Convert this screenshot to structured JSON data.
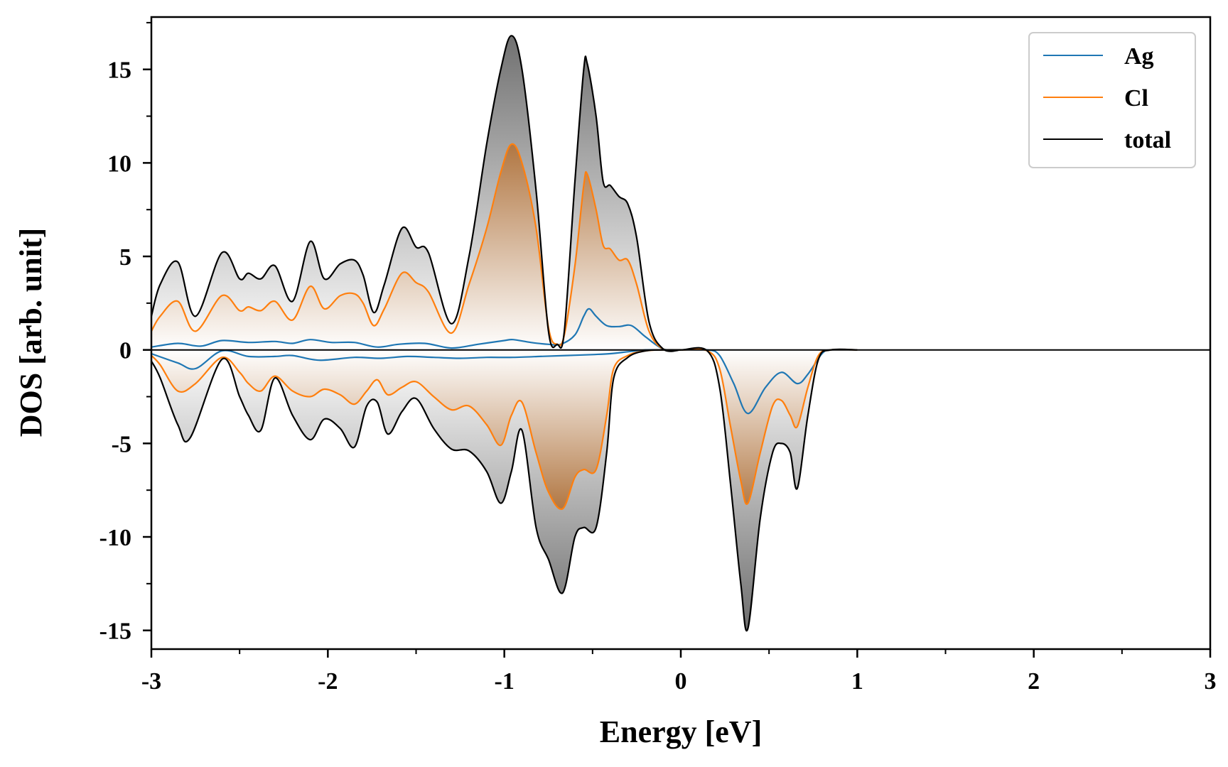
{
  "chart_data": {
    "type": "area",
    "xlabel": "Energy [eV]",
    "ylabel": "DOS [arb. unit]",
    "xlim": [
      -3,
      3
    ],
    "ylim": [
      -16,
      17.8
    ],
    "xticks": [
      -3,
      -2,
      -1,
      0,
      1,
      2,
      3
    ],
    "yticks": [
      -15,
      -10,
      -5,
      0,
      5,
      10,
      15
    ],
    "grid": false,
    "legend_position": "top-right",
    "colors": {
      "Ag": "#1f77b4",
      "Cl": "#ff7f0e",
      "total": "#000000"
    },
    "fills": {
      "total": "#808080",
      "Cl": "#b87a4b"
    },
    "series": [
      {
        "name": "Ag",
        "spin_up": {
          "x": [
            -3.0,
            -2.85,
            -2.72,
            -2.6,
            -2.45,
            -2.3,
            -2.2,
            -2.1,
            -1.98,
            -1.85,
            -1.72,
            -1.6,
            -1.45,
            -1.3,
            -1.15,
            -1.0,
            -0.95,
            -0.85,
            -0.75,
            -0.68,
            -0.6,
            -0.55,
            -0.52,
            -0.48,
            -0.42,
            -0.35,
            -0.28,
            -0.2,
            -0.1,
            0.0
          ],
          "y": [
            0.15,
            0.35,
            0.2,
            0.5,
            0.4,
            0.45,
            0.35,
            0.55,
            0.4,
            0.4,
            0.15,
            0.3,
            0.35,
            0.1,
            0.3,
            0.5,
            0.55,
            0.4,
            0.3,
            0.3,
            0.8,
            1.8,
            2.2,
            1.8,
            1.3,
            1.25,
            1.3,
            0.7,
            0.05,
            0.0
          ]
        },
        "spin_down": {
          "x": [
            -3.0,
            -2.85,
            -2.75,
            -2.6,
            -2.45,
            -2.3,
            -2.2,
            -2.05,
            -1.85,
            -1.7,
            -1.55,
            -1.4,
            -1.25,
            -1.1,
            -0.95,
            -0.8,
            -0.65,
            -0.5,
            -0.4,
            -0.3,
            -0.2,
            -0.1,
            0.0,
            0.15,
            0.22,
            0.3,
            0.38,
            0.48,
            0.57,
            0.66,
            0.72,
            0.8,
            0.85,
            1.0
          ],
          "y": [
            -0.2,
            -0.7,
            -1.0,
            -0.05,
            -0.35,
            -0.35,
            -0.3,
            -0.55,
            -0.4,
            -0.45,
            -0.35,
            -0.4,
            -0.45,
            -0.4,
            -0.4,
            -0.35,
            -0.3,
            -0.25,
            -0.2,
            -0.1,
            0.0,
            0.0,
            0.0,
            0.0,
            -0.3,
            -1.8,
            -3.4,
            -2.0,
            -1.2,
            -1.8,
            -1.3,
            -0.2,
            0.0,
            0.0
          ]
        }
      },
      {
        "name": "Cl",
        "spin_up": {
          "x": [
            -3.0,
            -2.95,
            -2.85,
            -2.75,
            -2.6,
            -2.5,
            -2.45,
            -2.38,
            -2.3,
            -2.2,
            -2.1,
            -2.02,
            -1.93,
            -1.85,
            -1.8,
            -1.74,
            -1.68,
            -1.58,
            -1.5,
            -1.43,
            -1.3,
            -1.2,
            -1.1,
            -1.02,
            -0.96,
            -0.9,
            -0.82,
            -0.75,
            -0.7,
            -0.66,
            -0.6,
            -0.55,
            -0.53,
            -0.48,
            -0.44,
            -0.4,
            -0.35,
            -0.3,
            -0.25,
            -0.18,
            -0.1,
            0.0
          ],
          "y": [
            1.0,
            1.8,
            2.6,
            1.0,
            2.9,
            2.1,
            2.3,
            2.1,
            2.6,
            1.6,
            3.4,
            2.2,
            2.9,
            3.0,
            2.5,
            1.3,
            2.2,
            4.1,
            3.6,
            3.1,
            0.9,
            3.5,
            6.5,
            9.5,
            11.0,
            10.0,
            6.5,
            1.2,
            0.3,
            0.8,
            4.5,
            8.8,
            9.4,
            7.5,
            5.6,
            5.4,
            4.8,
            4.8,
            3.5,
            1.0,
            0.05,
            0.0
          ]
        },
        "spin_down": {
          "x": [
            -3.0,
            -2.95,
            -2.85,
            -2.75,
            -2.6,
            -2.5,
            -2.45,
            -2.38,
            -2.3,
            -2.2,
            -2.1,
            -2.02,
            -1.93,
            -1.85,
            -1.78,
            -1.72,
            -1.66,
            -1.58,
            -1.5,
            -1.4,
            -1.3,
            -1.2,
            -1.1,
            -1.02,
            -0.96,
            -0.9,
            -0.82,
            -0.75,
            -0.67,
            -0.6,
            -0.55,
            -0.48,
            -0.42,
            -0.38,
            -0.3,
            -0.2,
            -0.1,
            0.0,
            0.15,
            0.22,
            0.28,
            0.34,
            0.38,
            0.45,
            0.52,
            0.57,
            0.62,
            0.66,
            0.72,
            0.78,
            0.85,
            1.0
          ],
          "y": [
            -0.3,
            -0.8,
            -2.2,
            -1.8,
            -0.4,
            -1.2,
            -1.8,
            -2.2,
            -1.4,
            -2.2,
            -2.5,
            -2.1,
            -2.4,
            -2.9,
            -2.2,
            -1.6,
            -2.4,
            -2.0,
            -1.7,
            -2.5,
            -3.2,
            -3.0,
            -4.0,
            -5.1,
            -3.5,
            -2.8,
            -5.5,
            -7.6,
            -8.5,
            -6.8,
            -6.4,
            -6.4,
            -3.5,
            -1.0,
            -0.3,
            -0.05,
            0.0,
            0.0,
            -0.05,
            -1.0,
            -4.0,
            -7.0,
            -8.2,
            -5.5,
            -3.0,
            -2.7,
            -3.5,
            -4.1,
            -2.0,
            -0.3,
            0.0,
            0.0
          ]
        }
      },
      {
        "name": "total",
        "spin_up": {
          "x": [
            -3.0,
            -2.95,
            -2.85,
            -2.75,
            -2.6,
            -2.5,
            -2.45,
            -2.38,
            -2.3,
            -2.2,
            -2.1,
            -2.02,
            -1.93,
            -1.85,
            -1.8,
            -1.74,
            -1.68,
            -1.58,
            -1.5,
            -1.43,
            -1.3,
            -1.2,
            -1.1,
            -1.02,
            -0.96,
            -0.9,
            -0.82,
            -0.75,
            -0.7,
            -0.66,
            -0.6,
            -0.55,
            -0.53,
            -0.48,
            -0.44,
            -0.4,
            -0.35,
            -0.3,
            -0.25,
            -0.18,
            -0.1,
            0.0
          ],
          "y": [
            1.8,
            3.5,
            4.7,
            1.8,
            5.2,
            3.8,
            4.1,
            3.8,
            4.5,
            2.6,
            5.8,
            3.8,
            4.6,
            4.8,
            4.0,
            2.0,
            3.5,
            6.5,
            5.5,
            5.2,
            1.4,
            5.0,
            11.0,
            15.0,
            16.8,
            15.0,
            8.5,
            1.0,
            0.3,
            1.0,
            9.0,
            15.0,
            15.3,
            12.5,
            9.0,
            8.8,
            8.2,
            7.8,
            6.0,
            1.5,
            0.05,
            0.0
          ]
        },
        "spin_down": {
          "x": [
            -3.0,
            -2.95,
            -2.85,
            -2.78,
            -2.6,
            -2.5,
            -2.45,
            -2.38,
            -2.3,
            -2.2,
            -2.1,
            -2.02,
            -1.93,
            -1.85,
            -1.78,
            -1.72,
            -1.66,
            -1.58,
            -1.5,
            -1.4,
            -1.3,
            -1.2,
            -1.1,
            -1.02,
            -0.96,
            -0.9,
            -0.82,
            -0.75,
            -0.67,
            -0.6,
            -0.55,
            -0.48,
            -0.42,
            -0.38,
            -0.3,
            -0.2,
            -0.1,
            0.0,
            0.15,
            0.22,
            0.28,
            0.34,
            0.38,
            0.45,
            0.52,
            0.57,
            0.62,
            0.66,
            0.72,
            0.78,
            0.85,
            1.0
          ],
          "y": [
            -0.6,
            -1.5,
            -4.0,
            -4.7,
            -0.5,
            -2.5,
            -3.5,
            -4.3,
            -1.5,
            -3.5,
            -4.8,
            -3.7,
            -4.2,
            -5.2,
            -3.0,
            -2.8,
            -4.5,
            -3.3,
            -2.6,
            -4.2,
            -5.3,
            -5.4,
            -6.5,
            -8.2,
            -6.5,
            -4.3,
            -9.5,
            -11.2,
            -13.0,
            -10.0,
            -9.5,
            -9.5,
            -5.5,
            -1.5,
            -0.4,
            -0.05,
            0.0,
            0.0,
            -0.05,
            -2.0,
            -7.0,
            -12.5,
            -14.9,
            -9.0,
            -5.5,
            -5.0,
            -5.5,
            -7.4,
            -3.5,
            -0.5,
            0.0,
            0.0
          ]
        }
      }
    ]
  }
}
